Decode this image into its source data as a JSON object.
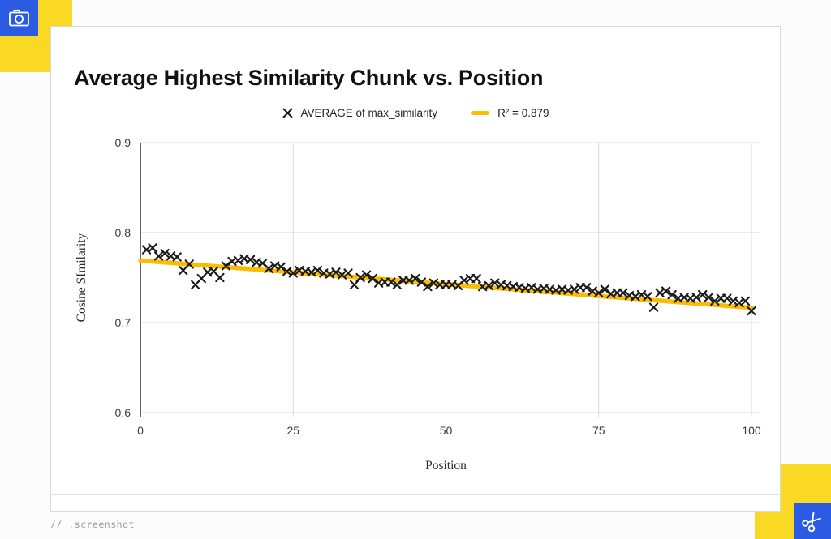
{
  "page": {
    "watermark": "// .screenshot"
  },
  "decor": {
    "yellow_hex": "#F9D923",
    "blue_hex": "#2A5BE2",
    "top_left_icon": "camera-icon",
    "bottom_right_icon": "scissors-icon"
  },
  "chart_data": {
    "type": "scatter",
    "title": "Average Highest Similarity Chunk vs. Position",
    "xlabel": "Position",
    "ylabel": "Cosine SImilarity",
    "xlim": [
      0,
      100
    ],
    "ylim": [
      0.6,
      0.9
    ],
    "x_ticks": [
      0,
      25,
      50,
      75,
      100
    ],
    "y_ticks": [
      0.6,
      0.7,
      0.8,
      0.9
    ],
    "grid": true,
    "legend_position": "top-center",
    "marker_color": "#1a1a1a",
    "trend_color": "#FBBC04",
    "legend": [
      {
        "label": "AVERAGE of max_similarity",
        "marker": "x"
      },
      {
        "label": "R² = 0.879",
        "marker": "line"
      }
    ],
    "series": [
      {
        "name": "AVERAGE of max_similarity",
        "type": "scatter",
        "marker": "x",
        "color": "#1a1a1a",
        "x": [
          1,
          2,
          3,
          4,
          5,
          6,
          7,
          8,
          9,
          10,
          11,
          12,
          13,
          14,
          15,
          16,
          17,
          18,
          19,
          20,
          21,
          22,
          23,
          24,
          25,
          26,
          27,
          28,
          29,
          30,
          31,
          32,
          33,
          34,
          35,
          36,
          37,
          38,
          39,
          40,
          41,
          42,
          43,
          44,
          45,
          46,
          47,
          48,
          49,
          50,
          51,
          52,
          53,
          54,
          55,
          56,
          57,
          58,
          59,
          60,
          61,
          62,
          63,
          64,
          65,
          66,
          67,
          68,
          69,
          70,
          71,
          72,
          73,
          74,
          75,
          76,
          77,
          78,
          79,
          80,
          81,
          82,
          83,
          84,
          85,
          86,
          87,
          88,
          89,
          90,
          91,
          92,
          93,
          94,
          95,
          96,
          97,
          98,
          99,
          100
        ],
        "y": [
          0.781,
          0.783,
          0.774,
          0.777,
          0.774,
          0.773,
          0.758,
          0.765,
          0.742,
          0.749,
          0.756,
          0.757,
          0.75,
          0.763,
          0.768,
          0.769,
          0.771,
          0.77,
          0.767,
          0.766,
          0.76,
          0.763,
          0.762,
          0.757,
          0.755,
          0.758,
          0.757,
          0.756,
          0.758,
          0.755,
          0.754,
          0.756,
          0.753,
          0.755,
          0.742,
          0.75,
          0.753,
          0.749,
          0.744,
          0.745,
          0.745,
          0.742,
          0.747,
          0.747,
          0.749,
          0.745,
          0.74,
          0.744,
          0.742,
          0.742,
          0.742,
          0.741,
          0.747,
          0.749,
          0.749,
          0.74,
          0.741,
          0.744,
          0.742,
          0.741,
          0.74,
          0.739,
          0.738,
          0.739,
          0.737,
          0.738,
          0.737,
          0.736,
          0.737,
          0.736,
          0.737,
          0.739,
          0.739,
          0.735,
          0.733,
          0.737,
          0.732,
          0.733,
          0.733,
          0.73,
          0.729,
          0.731,
          0.729,
          0.717,
          0.733,
          0.735,
          0.731,
          0.727,
          0.728,
          0.727,
          0.728,
          0.731,
          0.728,
          0.724,
          0.727,
          0.727,
          0.724,
          0.722,
          0.724,
          0.713
        ]
      },
      {
        "name": "Linear trendline",
        "type": "line",
        "color": "#FBBC04",
        "r_squared": 0.879,
        "x": [
          0,
          100
        ],
        "y": [
          0.769,
          0.7165
        ]
      }
    ]
  }
}
